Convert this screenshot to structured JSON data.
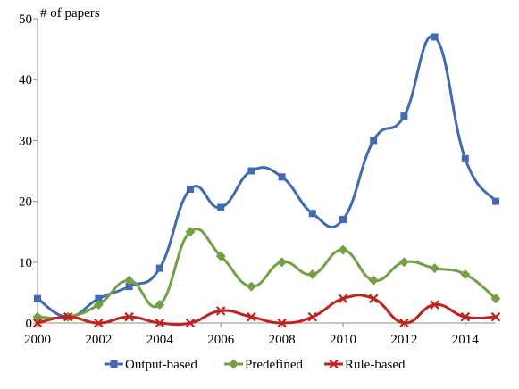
{
  "chart_data": {
    "type": "line",
    "title": "",
    "xlabel": "",
    "ylabel": "# of papers",
    "x": [
      2000,
      2001,
      2002,
      2003,
      2004,
      2005,
      2006,
      2007,
      2008,
      2009,
      2010,
      2011,
      2012,
      2013,
      2014,
      2015
    ],
    "xlim": [
      2000,
      2015
    ],
    "ylim": [
      0,
      50
    ],
    "xticks": [
      "2000",
      "2002",
      "2004",
      "2006",
      "2008",
      "2010",
      "2012",
      "2014"
    ],
    "yticks": [
      "0",
      "10",
      "20",
      "30",
      "40",
      "50"
    ],
    "grid": false,
    "legend_position": "bottom",
    "smoothed": true,
    "series": [
      {
        "name": "Output-based",
        "color": "#4169B5",
        "marker": "square",
        "values": [
          4,
          1,
          4,
          6,
          9,
          22,
          19,
          25,
          24,
          18,
          17,
          30,
          34,
          47,
          27,
          20
        ]
      },
      {
        "name": "Predefined",
        "color": "#72A043",
        "marker": "diamond",
        "values": [
          1,
          1,
          3,
          7,
          3,
          15,
          11,
          6,
          10,
          8,
          12,
          7,
          10,
          9,
          8,
          4
        ]
      },
      {
        "name": "Rule-based",
        "color": "#C0221E",
        "marker": "x",
        "values": [
          0,
          1,
          0,
          1,
          0,
          0,
          2,
          1,
          0,
          1,
          4,
          4,
          0,
          3,
          1,
          1
        ]
      }
    ]
  }
}
